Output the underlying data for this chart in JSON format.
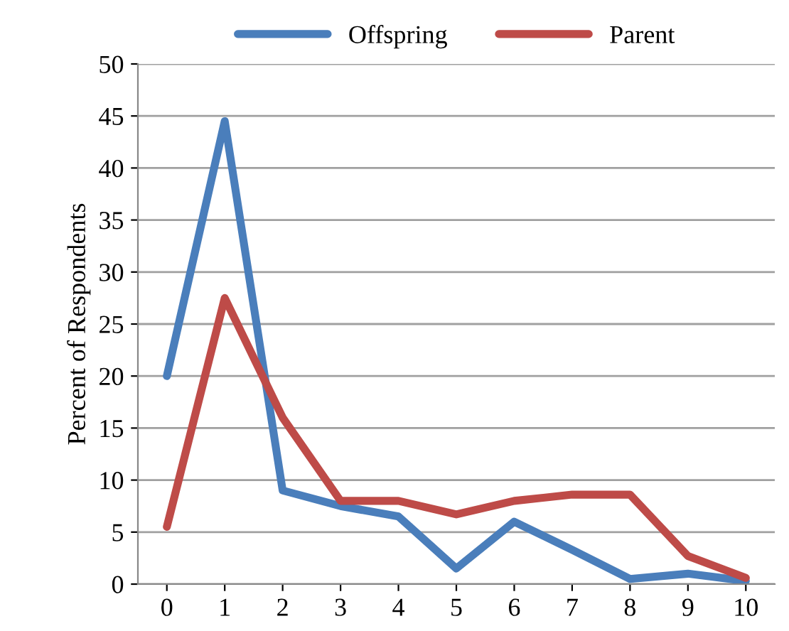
{
  "chart_data": {
    "type": "line",
    "ylabel": "Percent of Respondents",
    "categories": [
      "0",
      "1",
      "2",
      "3",
      "4",
      "5",
      "6",
      "7",
      "8",
      "9",
      "10"
    ],
    "series": [
      {
        "name": "Offspring",
        "color": "#4a7ebb",
        "values": [
          20,
          44.5,
          9,
          7.5,
          6.5,
          1.5,
          6,
          3.3,
          0.5,
          1,
          0.3
        ]
      },
      {
        "name": "Parent",
        "color": "#be4b48",
        "values": [
          5.5,
          27.5,
          16,
          8,
          8,
          6.7,
          8,
          8.6,
          8.6,
          2.7,
          0.6
        ]
      }
    ],
    "ylim": [
      0,
      50
    ],
    "yticks": [
      0,
      5,
      10,
      15,
      20,
      25,
      30,
      35,
      40,
      45,
      50
    ],
    "grid": "y",
    "legend": "top",
    "marker": "none",
    "line_style": "solid"
  }
}
